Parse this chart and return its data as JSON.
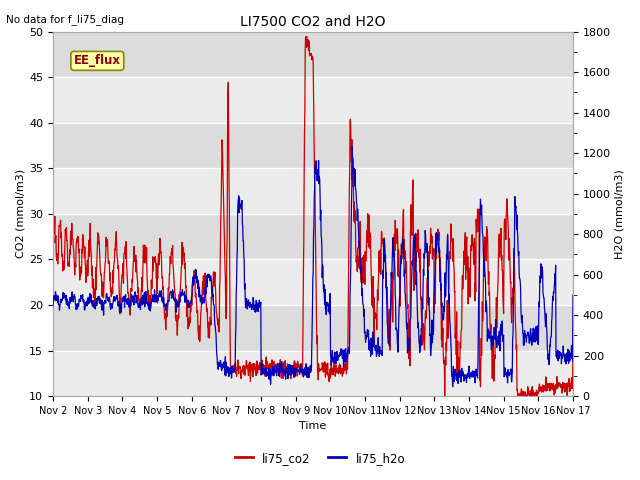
{
  "title": "LI7500 CO2 and H2O",
  "top_left_text": "No data for f_li75_diag",
  "xlabel": "Time",
  "ylabel_left": "CO2 (mmol/m3)",
  "ylabel_right": "H2O (mmol/m3)",
  "ylim_left": [
    10,
    50
  ],
  "ylim_right": [
    0,
    1800
  ],
  "xtick_labels": [
    "Nov 2",
    "Nov 3",
    "Nov 4",
    "Nov 5",
    "Nov 6",
    "Nov 7",
    "Nov 8",
    "Nov 9",
    "Nov 10",
    "Nov 11",
    "Nov 12",
    "Nov 13",
    "Nov 14",
    "Nov 15",
    "Nov 16",
    "Nov 17"
  ],
  "legend_label_co2": "li75_co2",
  "legend_label_h2o": "li75_h2o",
  "color_co2": "#CC0000",
  "color_h2o": "#0000BB",
  "annotation_text": "EE_flux",
  "bg_color_light": "#EBEBEB",
  "bg_color_dark": "#DCDCDC",
  "grid_color": "white",
  "title_color": "#000000",
  "axis_label_color": "#000000",
  "tick_label_color": "#000000",
  "top_text_color": "#000000"
}
